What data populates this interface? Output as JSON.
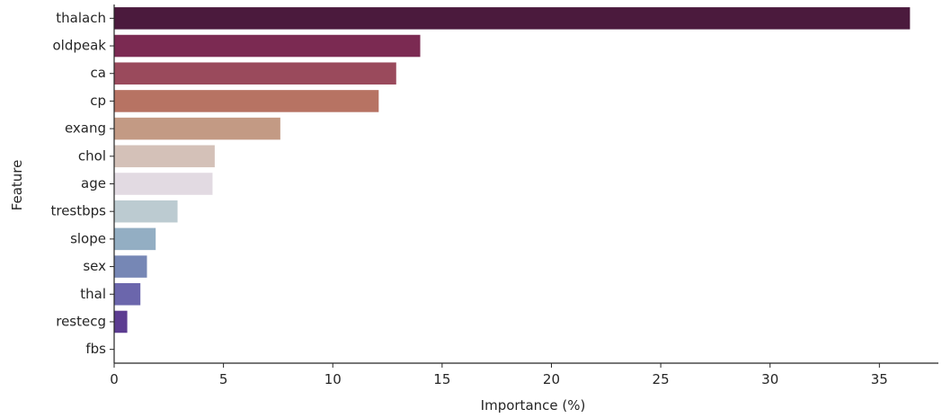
{
  "chart_data": {
    "type": "bar",
    "orientation": "horizontal",
    "title": "",
    "xlabel": "Importance (%)",
    "ylabel": "Feature",
    "xlim": [
      0,
      37.7
    ],
    "xticks": [
      0,
      5,
      10,
      15,
      20,
      25,
      30,
      35
    ],
    "grid": false,
    "legend": "none",
    "categories": [
      "thalach",
      "oldpeak",
      "ca",
      "cp",
      "exang",
      "chol",
      "age",
      "trestbps",
      "slope",
      "sex",
      "thal",
      "restecg",
      "fbs"
    ],
    "values": [
      36.4,
      14.0,
      12.9,
      12.1,
      7.6,
      4.6,
      4.5,
      2.9,
      1.9,
      1.5,
      1.2,
      0.6,
      0.0
    ],
    "colors": [
      "#4b1a3d",
      "#7b2a52",
      "#9a4a5c",
      "#b77363",
      "#c39a84",
      "#d4c1b8",
      "#e2dae2",
      "#bccbd1",
      "#93aec3",
      "#7687b5",
      "#6b66ac",
      "#5c3c91",
      "#3f2262"
    ]
  }
}
